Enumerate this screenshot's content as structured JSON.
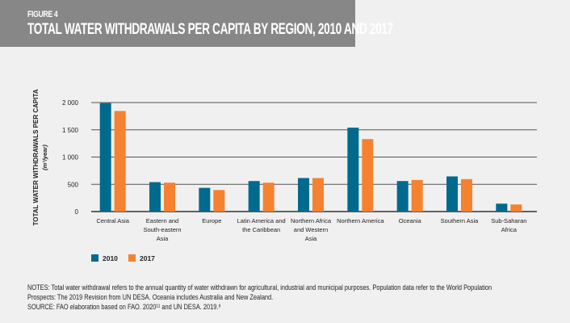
{
  "header": {
    "figure_label": "FIGURE 4",
    "title": "TOTAL WATER WITHDRAWALS PER CAPITA BY REGION, 2010 AND 2017"
  },
  "chart_data": {
    "type": "bar",
    "title": "TOTAL WATER WITHDRAWALS PER CAPITA BY REGION, 2010 AND 2017",
    "ylabel": "TOTAL WATER WITHDRAWALS PER CAPITA",
    "yunit": "(m³/year)",
    "ylim": [
      0,
      2000
    ],
    "yticks": [
      0,
      500,
      1000,
      1500,
      2000
    ],
    "ytick_labels": [
      "0",
      "500",
      "1 000",
      "1 500",
      "2 000"
    ],
    "grid": true,
    "legend_placement": "bottom-left",
    "categories": [
      [
        "Central Asia"
      ],
      [
        "Eastern and",
        "South-eastern",
        "Asia"
      ],
      [
        "Europe"
      ],
      [
        "Latin America and",
        "the Caribbean"
      ],
      [
        "Northern Africa",
        "and Western",
        "Asia"
      ],
      [
        "Northern America"
      ],
      [
        "Oceania"
      ],
      [
        "Southern Asia"
      ],
      [
        "Sub-Saharan",
        "Africa"
      ]
    ],
    "series": [
      {
        "name": "2010",
        "color": "#006a8e",
        "values": [
          1990,
          540,
          435,
          560,
          615,
          1540,
          560,
          645,
          145
        ]
      },
      {
        "name": "2017",
        "color": "#f58230",
        "values": [
          1845,
          530,
          395,
          530,
          615,
          1330,
          580,
          595,
          130
        ]
      }
    ]
  },
  "notes": {
    "line1": "NOTES: Total water withdrawal refers to the annual quantity of water withdrawn for agricultural, industrial and municipal purposes. Population data refer to the World Population",
    "line2": "Prospects: The 2019 Revision from UN DESA. Oceania includes Australia and New Zealand.",
    "source": "SOURCE: FAO elaboration based on FAO. 2020¹¹ and UN DESA. 2019.⁸"
  }
}
